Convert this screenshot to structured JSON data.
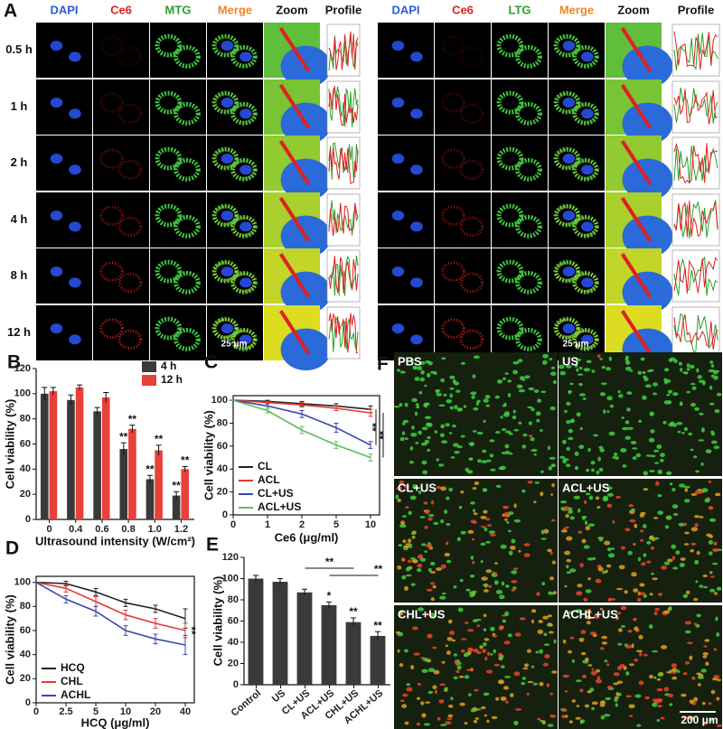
{
  "panel_a": {
    "letter": "A",
    "scale_bar": "25 μm",
    "left": {
      "columns": [
        "DAPI",
        "Ce6",
        "MTG",
        "Merge",
        "Zoom",
        "Profile"
      ]
    },
    "right": {
      "columns": [
        "DAPI",
        "Ce6",
        "LTG",
        "Merge",
        "Zoom",
        "Profile"
      ]
    },
    "rows": [
      "0.5 h",
      "1 h",
      "2 h",
      "4 h",
      "8 h",
      "12 h"
    ]
  },
  "chart_data": [
    {
      "panel": "B",
      "type": "bar",
      "y_label": "Cell viability (%)",
      "x_label": "Ultrasound intensity (W/cm²)",
      "categories": [
        "0",
        "0.4",
        "0.6",
        "0.8",
        "1.0",
        "1.2"
      ],
      "series": [
        {
          "name": "4 h",
          "color": "#3a3a3a",
          "values": [
            100,
            95,
            86,
            56,
            32,
            19
          ],
          "errors": [
            5,
            4,
            3,
            5,
            3,
            3
          ],
          "significance": [
            null,
            null,
            null,
            "**",
            "**",
            "**"
          ]
        },
        {
          "name": "12 h",
          "color": "#e8403a",
          "values": [
            102,
            105,
            97,
            72,
            55,
            40
          ],
          "errors": [
            3,
            2,
            4,
            3,
            4,
            2
          ],
          "significance": [
            null,
            null,
            null,
            "**",
            "**",
            "**"
          ]
        }
      ],
      "ylim": [
        0,
        120
      ],
      "yticks": [
        0,
        20,
        40,
        60,
        80,
        100,
        120
      ],
      "legend": "upper right"
    },
    {
      "panel": "C",
      "type": "line",
      "y_label": "Cell viability (%)",
      "x_label": "Ce6 (μg/ml)",
      "categories": [
        "0",
        "1",
        "2",
        "5",
        "10"
      ],
      "series": [
        {
          "name": "CL",
          "color": "#222222",
          "values": [
            100,
            99,
            97,
            95,
            92
          ],
          "errors": [
            0,
            1,
            2,
            2,
            3
          ]
        },
        {
          "name": "ACL",
          "color": "#e53935",
          "values": [
            100,
            98,
            96,
            93,
            89
          ],
          "errors": [
            0,
            1,
            2,
            2,
            3
          ]
        },
        {
          "name": "CL+US",
          "color": "#3949ab",
          "values": [
            100,
            95,
            88,
            76,
            61
          ],
          "errors": [
            0,
            2,
            3,
            4,
            3
          ]
        },
        {
          "name": "ACL+US",
          "color": "#5cbf5c",
          "values": [
            100,
            91,
            74,
            61,
            50
          ],
          "errors": [
            0,
            2,
            3,
            3,
            3
          ]
        }
      ],
      "significance_labels": [
        "**",
        "**"
      ],
      "ylim": [
        0,
        104
      ],
      "yticks": [
        0,
        20,
        40,
        60,
        80,
        100
      ],
      "legend": "lower left"
    },
    {
      "panel": "D",
      "type": "line",
      "y_label": "Cell viability (%)",
      "x_label": "HCQ (μg/ml)",
      "categories": [
        "0",
        "2.5",
        "5",
        "10",
        "20",
        "40"
      ],
      "series": [
        {
          "name": "HCQ",
          "color": "#222222",
          "values": [
            100,
            99,
            92,
            83,
            78,
            70
          ],
          "errors": [
            0,
            2,
            3,
            3,
            3,
            8
          ]
        },
        {
          "name": "CHL",
          "color": "#e53935",
          "values": [
            100,
            95,
            84,
            73,
            66,
            60
          ],
          "errors": [
            0,
            3,
            4,
            4,
            4,
            6
          ]
        },
        {
          "name": "ACHL",
          "color": "#3949ab",
          "values": [
            100,
            86,
            76,
            60,
            53,
            48
          ],
          "errors": [
            0,
            3,
            4,
            4,
            4,
            8
          ]
        }
      ],
      "significance_labels": [
        "**"
      ],
      "ylim": [
        0,
        105
      ],
      "yticks": [
        0,
        20,
        40,
        60,
        80,
        100
      ],
      "legend": "lower left"
    },
    {
      "panel": "E",
      "type": "bar",
      "y_label": "Cell viability (%)",
      "categories": [
        "Control",
        "US",
        "CL+US",
        "ACL+US",
        "CHL+US",
        "ACHL+US"
      ],
      "values": [
        100,
        97,
        87,
        75,
        59,
        46
      ],
      "errors": [
        3,
        3,
        3,
        3,
        4,
        4
      ],
      "color": "#3a3a3a",
      "significance": [
        null,
        null,
        null,
        "*",
        "**",
        "**"
      ],
      "significance_labels": [
        "**",
        "**"
      ],
      "ylim": [
        0,
        120
      ],
      "yticks": [
        0,
        20,
        40,
        60,
        80,
        100,
        120
      ]
    }
  ],
  "panel_f": {
    "letter": "F",
    "labels": [
      "PBS",
      "US",
      "CL+US",
      "ACL+US",
      "CHL+US",
      "ACHL+US"
    ],
    "scale_bar": "200 μm"
  }
}
